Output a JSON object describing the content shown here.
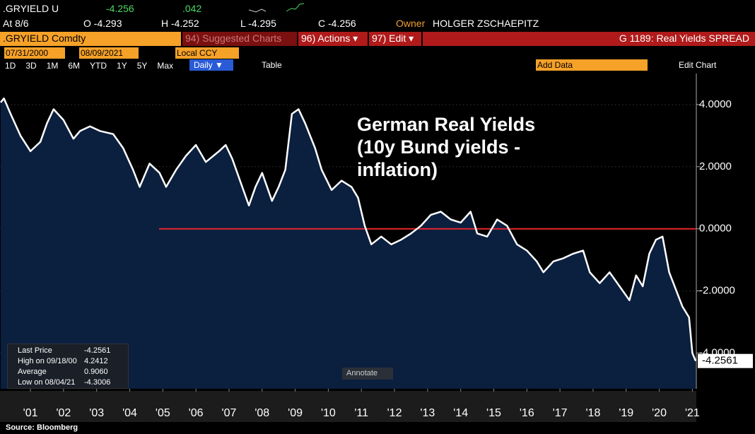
{
  "header": {
    "ticker": ".GRYIELD U",
    "last": "-4.256",
    "change": ".042",
    "date": "At 8/6",
    "open": "O -4.293",
    "high": "H -4.252",
    "low": "L -4.295",
    "close": "C -4.256",
    "owner_label": "Owner",
    "owner": "HOLGER ZSCHAEPITZ"
  },
  "toolbar": {
    "security": ".GRYIELD Comdty",
    "suggested": "94) Suggested Charts",
    "actions": "96) Actions ▾",
    "edit": "97) Edit ▾",
    "chart_name": "G 1189: Real Yields SPREAD",
    "start_date": "07/31/2000",
    "end_date": "08/09/2021",
    "currency": "Local CCY",
    "periods": [
      "1D",
      "3D",
      "1M",
      "6M",
      "YTD",
      "1Y",
      "5Y",
      "Max"
    ],
    "frequency": "Daily ▼",
    "table": "Table",
    "add_data": "Add Data",
    "edit_chart": "Edit Chart"
  },
  "legend": {
    "rows": [
      [
        "Last Price",
        "-4.2561"
      ],
      [
        "High on 09/18/00",
        "4.2412"
      ],
      [
        "Average",
        "0.9060"
      ],
      [
        "Low on 08/04/21",
        "-4.3006"
      ]
    ]
  },
  "annotate": "Annotate",
  "source": "Source: Bloomberg",
  "chart_data": {
    "type": "line",
    "annotation": [
      "German Real Yields",
      "(10y Bund yields -",
      "inflation)"
    ],
    "x": [
      2000.6,
      2000.7,
      2000.9,
      2001.2,
      2001.5,
      2001.8,
      2002.0,
      2002.2,
      2002.5,
      2002.8,
      2003.0,
      2003.3,
      2003.6,
      2004.0,
      2004.3,
      2004.6,
      2004.8,
      2005.1,
      2005.4,
      2005.6,
      2005.9,
      2006.2,
      2006.5,
      2006.8,
      2007.2,
      2007.4,
      2007.6,
      2007.9,
      2008.1,
      2008.3,
      2008.5,
      2008.8,
      2009.0,
      2009.2,
      2009.4,
      2009.6,
      2009.8,
      2010.1,
      2010.3,
      2010.6,
      2010.9,
      2011.2,
      2011.4,
      2011.6,
      2011.8,
      2012.1,
      2012.4,
      2012.7,
      2013.0,
      2013.3,
      2013.6,
      2013.9,
      2014.2,
      2014.5,
      2014.8,
      2015.0,
      2015.3,
      2015.6,
      2015.9,
      2016.2,
      2016.5,
      2016.8,
      2017.0,
      2017.3,
      2017.6,
      2017.9,
      2018.2,
      2018.4,
      2018.7,
      2019.0,
      2019.3,
      2019.6,
      2019.8,
      2020.0,
      2020.2,
      2020.4,
      2020.6,
      2020.8,
      2021.0,
      2021.2,
      2021.4,
      2021.5,
      2021.6
    ],
    "series": [
      {
        "color": "#ffffff",
        "values": [
          4.07,
          4.2,
          3.7,
          3.0,
          2.5,
          2.8,
          3.4,
          3.85,
          3.5,
          2.9,
          3.15,
          3.3,
          3.15,
          3.05,
          2.6,
          1.9,
          1.35,
          2.1,
          1.8,
          1.35,
          1.9,
          2.35,
          2.7,
          2.15,
          2.5,
          2.7,
          2.25,
          1.35,
          0.75,
          1.35,
          1.8,
          0.9,
          1.35,
          1.9,
          3.7,
          3.85,
          3.4,
          2.6,
          1.9,
          1.25,
          1.55,
          1.35,
          1.0,
          0.1,
          -0.5,
          -0.25,
          -0.5,
          -0.35,
          -0.15,
          0.1,
          0.45,
          0.55,
          0.3,
          0.2,
          0.55,
          -0.15,
          -0.25,
          0.3,
          0.1,
          -0.5,
          -0.7,
          -1.05,
          -1.4,
          -1.05,
          -0.95,
          -0.8,
          -0.7,
          -1.4,
          -1.75,
          -1.4,
          -1.85,
          -2.3,
          -1.5,
          -1.85,
          -0.8,
          -0.35,
          -0.25,
          -1.4,
          -1.95,
          -2.5,
          -2.85,
          -4.0,
          -4.2561
        ]
      }
    ],
    "last_label": "-4.2561",
    "fill": "#0b1f3f",
    "hline": {
      "value": 0,
      "color": "#e8262b"
    },
    "xlim": [
      2000.58,
      2021.62
    ],
    "xticks": [
      {
        "value": 2001.5,
        "label": "'01"
      },
      {
        "value": 2002.5,
        "label": "'02"
      },
      {
        "value": 2003.5,
        "label": "'03"
      },
      {
        "value": 2004.5,
        "label": "'04"
      },
      {
        "value": 2005.5,
        "label": "'05"
      },
      {
        "value": 2006.5,
        "label": "'06"
      },
      {
        "value": 2007.5,
        "label": "'07"
      },
      {
        "value": 2008.5,
        "label": "'08"
      },
      {
        "value": 2009.5,
        "label": "'09"
      },
      {
        "value": 2010.5,
        "label": "'10"
      },
      {
        "value": 2011.5,
        "label": "'11"
      },
      {
        "value": 2012.5,
        "label": "'12"
      },
      {
        "value": 2013.5,
        "label": "'13"
      },
      {
        "value": 2014.5,
        "label": "'14"
      },
      {
        "value": 2015.5,
        "label": "'15"
      },
      {
        "value": 2016.5,
        "label": "'16"
      },
      {
        "value": 2017.5,
        "label": "'17"
      },
      {
        "value": 2018.5,
        "label": "'18"
      },
      {
        "value": 2019.5,
        "label": "'19"
      },
      {
        "value": 2020.5,
        "label": "'20"
      },
      {
        "value": 2021.5,
        "label": "'21"
      }
    ],
    "ylim": [
      -5.15,
      5.0
    ],
    "yticks": [
      {
        "value": 4,
        "label": "4.0000"
      },
      {
        "value": 2,
        "label": "2.0000"
      },
      {
        "value": 0,
        "label": "0.0000"
      },
      {
        "value": -2,
        "label": "-2.0000"
      },
      {
        "value": -4,
        "label": "-4.0000"
      }
    ],
    "grid": true
  }
}
